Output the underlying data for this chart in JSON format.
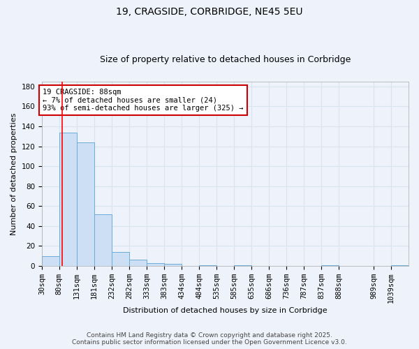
{
  "title": "19, CRAGSIDE, CORBRIDGE, NE45 5EU",
  "subtitle": "Size of property relative to detached houses in Corbridge",
  "xlabel": "Distribution of detached houses by size in Corbridge",
  "ylabel": "Number of detached properties",
  "bins": [
    "30sqm",
    "80sqm",
    "131sqm",
    "181sqm",
    "232sqm",
    "282sqm",
    "333sqm",
    "383sqm",
    "434sqm",
    "484sqm",
    "535sqm",
    "585sqm",
    "635sqm",
    "686sqm",
    "736sqm",
    "787sqm",
    "837sqm",
    "888sqm",
    "989sqm",
    "1039sqm"
  ],
  "bin_edges": [
    30,
    80,
    131,
    181,
    232,
    282,
    333,
    383,
    434,
    484,
    535,
    585,
    635,
    686,
    736,
    787,
    837,
    888,
    989,
    1039
  ],
  "values": [
    10,
    134,
    124,
    52,
    14,
    6,
    3,
    2,
    0,
    1,
    0,
    1,
    0,
    0,
    0,
    0,
    1,
    0,
    0,
    1
  ],
  "bar_color": "#ccdff5",
  "bar_edge_color": "#6aacd8",
  "background_color": "#eef2fa",
  "grid_color": "#d8e4f0",
  "red_line_x": 88,
  "annotation_text": "19 CRAGSIDE: 88sqm\n← 7% of detached houses are smaller (24)\n93% of semi-detached houses are larger (325) →",
  "annotation_box_facecolor": "#ffffff",
  "annotation_box_edgecolor": "#cc0000",
  "ylim": [
    0,
    185
  ],
  "yticks": [
    0,
    20,
    40,
    60,
    80,
    100,
    120,
    140,
    160,
    180
  ],
  "footer_text": "Contains HM Land Registry data © Crown copyright and database right 2025.\nContains public sector information licensed under the Open Government Licence v3.0.",
  "title_fontsize": 10,
  "subtitle_fontsize": 9,
  "axis_label_fontsize": 8,
  "tick_fontsize": 7.5,
  "annotation_fontsize": 7.5,
  "footer_fontsize": 6.5
}
